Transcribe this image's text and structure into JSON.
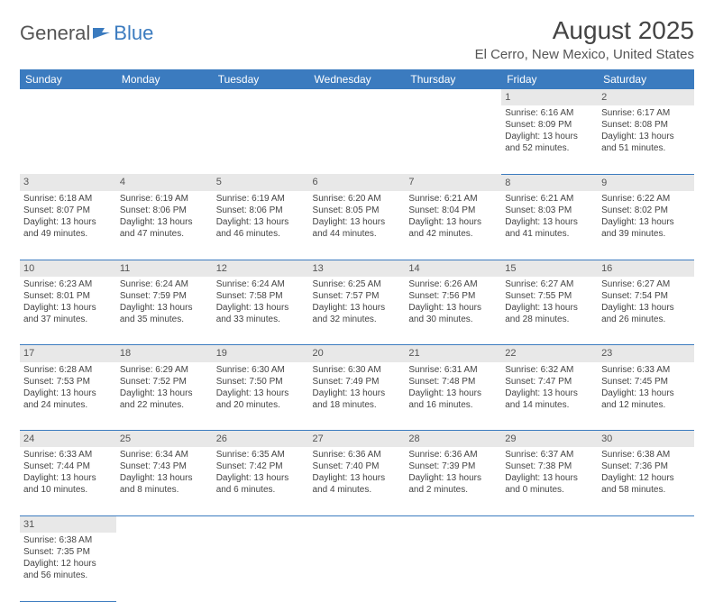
{
  "logo": {
    "part1": "General",
    "part2": "Blue"
  },
  "title": "August 2025",
  "location": "El Cerro, New Mexico, United States",
  "day_headers": [
    "Sunday",
    "Monday",
    "Tuesday",
    "Wednesday",
    "Thursday",
    "Friday",
    "Saturday"
  ],
  "colors": {
    "header_bg": "#3b7bbf",
    "header_text": "#ffffff",
    "daynum_bg": "#e8e8e8",
    "row_border": "#3b7bbf",
    "text": "#444444"
  },
  "weeks": [
    {
      "nums": [
        "",
        "",
        "",
        "",
        "",
        "1",
        "2"
      ],
      "cells": [
        null,
        null,
        null,
        null,
        null,
        {
          "sunrise": "Sunrise: 6:16 AM",
          "sunset": "Sunset: 8:09 PM",
          "day1": "Daylight: 13 hours",
          "day2": "and 52 minutes."
        },
        {
          "sunrise": "Sunrise: 6:17 AM",
          "sunset": "Sunset: 8:08 PM",
          "day1": "Daylight: 13 hours",
          "day2": "and 51 minutes."
        }
      ]
    },
    {
      "nums": [
        "3",
        "4",
        "5",
        "6",
        "7",
        "8",
        "9"
      ],
      "cells": [
        {
          "sunrise": "Sunrise: 6:18 AM",
          "sunset": "Sunset: 8:07 PM",
          "day1": "Daylight: 13 hours",
          "day2": "and 49 minutes."
        },
        {
          "sunrise": "Sunrise: 6:19 AM",
          "sunset": "Sunset: 8:06 PM",
          "day1": "Daylight: 13 hours",
          "day2": "and 47 minutes."
        },
        {
          "sunrise": "Sunrise: 6:19 AM",
          "sunset": "Sunset: 8:06 PM",
          "day1": "Daylight: 13 hours",
          "day2": "and 46 minutes."
        },
        {
          "sunrise": "Sunrise: 6:20 AM",
          "sunset": "Sunset: 8:05 PM",
          "day1": "Daylight: 13 hours",
          "day2": "and 44 minutes."
        },
        {
          "sunrise": "Sunrise: 6:21 AM",
          "sunset": "Sunset: 8:04 PM",
          "day1": "Daylight: 13 hours",
          "day2": "and 42 minutes."
        },
        {
          "sunrise": "Sunrise: 6:21 AM",
          "sunset": "Sunset: 8:03 PM",
          "day1": "Daylight: 13 hours",
          "day2": "and 41 minutes."
        },
        {
          "sunrise": "Sunrise: 6:22 AM",
          "sunset": "Sunset: 8:02 PM",
          "day1": "Daylight: 13 hours",
          "day2": "and 39 minutes."
        }
      ]
    },
    {
      "nums": [
        "10",
        "11",
        "12",
        "13",
        "14",
        "15",
        "16"
      ],
      "cells": [
        {
          "sunrise": "Sunrise: 6:23 AM",
          "sunset": "Sunset: 8:01 PM",
          "day1": "Daylight: 13 hours",
          "day2": "and 37 minutes."
        },
        {
          "sunrise": "Sunrise: 6:24 AM",
          "sunset": "Sunset: 7:59 PM",
          "day1": "Daylight: 13 hours",
          "day2": "and 35 minutes."
        },
        {
          "sunrise": "Sunrise: 6:24 AM",
          "sunset": "Sunset: 7:58 PM",
          "day1": "Daylight: 13 hours",
          "day2": "and 33 minutes."
        },
        {
          "sunrise": "Sunrise: 6:25 AM",
          "sunset": "Sunset: 7:57 PM",
          "day1": "Daylight: 13 hours",
          "day2": "and 32 minutes."
        },
        {
          "sunrise": "Sunrise: 6:26 AM",
          "sunset": "Sunset: 7:56 PM",
          "day1": "Daylight: 13 hours",
          "day2": "and 30 minutes."
        },
        {
          "sunrise": "Sunrise: 6:27 AM",
          "sunset": "Sunset: 7:55 PM",
          "day1": "Daylight: 13 hours",
          "day2": "and 28 minutes."
        },
        {
          "sunrise": "Sunrise: 6:27 AM",
          "sunset": "Sunset: 7:54 PM",
          "day1": "Daylight: 13 hours",
          "day2": "and 26 minutes."
        }
      ]
    },
    {
      "nums": [
        "17",
        "18",
        "19",
        "20",
        "21",
        "22",
        "23"
      ],
      "cells": [
        {
          "sunrise": "Sunrise: 6:28 AM",
          "sunset": "Sunset: 7:53 PM",
          "day1": "Daylight: 13 hours",
          "day2": "and 24 minutes."
        },
        {
          "sunrise": "Sunrise: 6:29 AM",
          "sunset": "Sunset: 7:52 PM",
          "day1": "Daylight: 13 hours",
          "day2": "and 22 minutes."
        },
        {
          "sunrise": "Sunrise: 6:30 AM",
          "sunset": "Sunset: 7:50 PM",
          "day1": "Daylight: 13 hours",
          "day2": "and 20 minutes."
        },
        {
          "sunrise": "Sunrise: 6:30 AM",
          "sunset": "Sunset: 7:49 PM",
          "day1": "Daylight: 13 hours",
          "day2": "and 18 minutes."
        },
        {
          "sunrise": "Sunrise: 6:31 AM",
          "sunset": "Sunset: 7:48 PM",
          "day1": "Daylight: 13 hours",
          "day2": "and 16 minutes."
        },
        {
          "sunrise": "Sunrise: 6:32 AM",
          "sunset": "Sunset: 7:47 PM",
          "day1": "Daylight: 13 hours",
          "day2": "and 14 minutes."
        },
        {
          "sunrise": "Sunrise: 6:33 AM",
          "sunset": "Sunset: 7:45 PM",
          "day1": "Daylight: 13 hours",
          "day2": "and 12 minutes."
        }
      ]
    },
    {
      "nums": [
        "24",
        "25",
        "26",
        "27",
        "28",
        "29",
        "30"
      ],
      "cells": [
        {
          "sunrise": "Sunrise: 6:33 AM",
          "sunset": "Sunset: 7:44 PM",
          "day1": "Daylight: 13 hours",
          "day2": "and 10 minutes."
        },
        {
          "sunrise": "Sunrise: 6:34 AM",
          "sunset": "Sunset: 7:43 PM",
          "day1": "Daylight: 13 hours",
          "day2": "and 8 minutes."
        },
        {
          "sunrise": "Sunrise: 6:35 AM",
          "sunset": "Sunset: 7:42 PM",
          "day1": "Daylight: 13 hours",
          "day2": "and 6 minutes."
        },
        {
          "sunrise": "Sunrise: 6:36 AM",
          "sunset": "Sunset: 7:40 PM",
          "day1": "Daylight: 13 hours",
          "day2": "and 4 minutes."
        },
        {
          "sunrise": "Sunrise: 6:36 AM",
          "sunset": "Sunset: 7:39 PM",
          "day1": "Daylight: 13 hours",
          "day2": "and 2 minutes."
        },
        {
          "sunrise": "Sunrise: 6:37 AM",
          "sunset": "Sunset: 7:38 PM",
          "day1": "Daylight: 13 hours",
          "day2": "and 0 minutes."
        },
        {
          "sunrise": "Sunrise: 6:38 AM",
          "sunset": "Sunset: 7:36 PM",
          "day1": "Daylight: 12 hours",
          "day2": "and 58 minutes."
        }
      ]
    },
    {
      "nums": [
        "31",
        "",
        "",
        "",
        "",
        "",
        ""
      ],
      "cells": [
        {
          "sunrise": "Sunrise: 6:38 AM",
          "sunset": "Sunset: 7:35 PM",
          "day1": "Daylight: 12 hours",
          "day2": "and 56 minutes."
        },
        null,
        null,
        null,
        null,
        null,
        null
      ]
    }
  ]
}
